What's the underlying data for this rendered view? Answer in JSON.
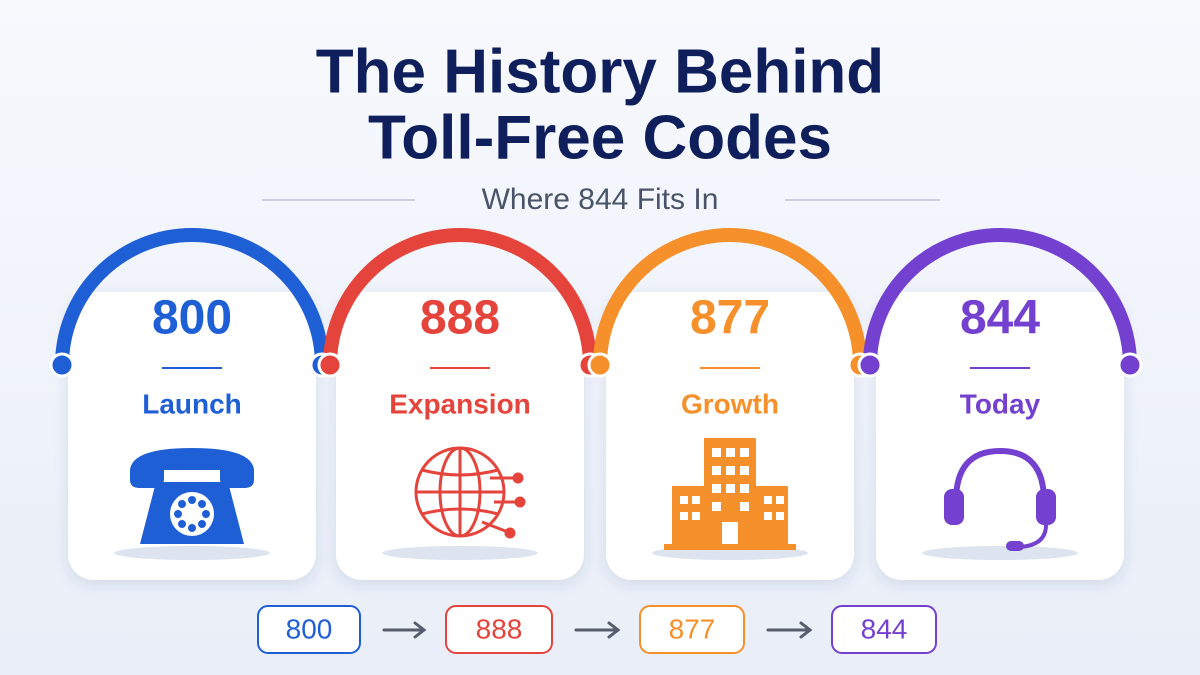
{
  "header": {
    "title_lines": [
      "The History Behind",
      "Toll-Free Codes"
    ],
    "subtitle": "Where 844 Fits In"
  },
  "cards": [
    {
      "code": "800",
      "label": "Launch",
      "color": "#1f5fd6"
    },
    {
      "code": "888",
      "label": "Expansion",
      "color": "#e5443c"
    },
    {
      "code": "877",
      "label": "Growth",
      "color": "#f5902a"
    },
    {
      "code": "844",
      "label": "Today",
      "color": "#7440cf"
    }
  ],
  "flow": [
    "800",
    "888",
    "877",
    "844"
  ]
}
